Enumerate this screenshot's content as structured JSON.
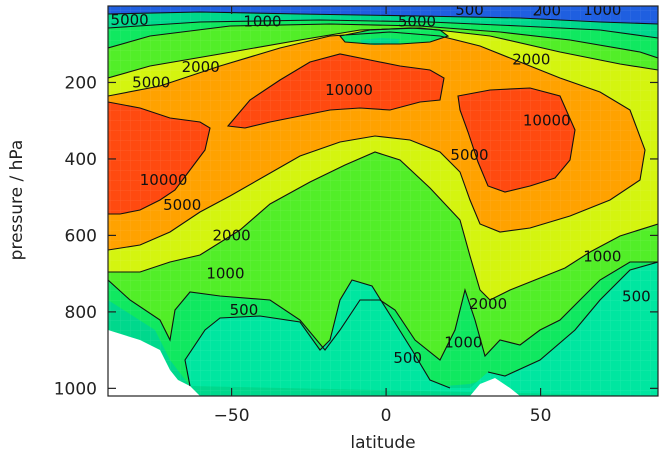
{
  "chart_data": {
    "type": "heatmap",
    "subtype": "filled-contour",
    "xlabel": "latitude",
    "ylabel": "pressure / hPa",
    "xlim": [
      -90,
      88
    ],
    "ylim": [
      1020,
      0
    ],
    "y_axis_inverted": true,
    "xticks": [
      -50,
      0,
      50
    ],
    "xtick_labels": [
      "−50",
      "0",
      "50"
    ],
    "yticks": [
      200,
      400,
      600,
      800,
      1000
    ],
    "ytick_labels": [
      "200",
      "400",
      "600",
      "800",
      "1000"
    ],
    "contour_levels": [
      200,
      500,
      1000,
      2000,
      5000,
      10000
    ],
    "level_colors": {
      "below_200": "#1f5fe0",
      "200_500": "#00d88c",
      "500_1000": "#10e860",
      "1000_2000": "#52ee28",
      "2000_5000": "#d4f410",
      "5000_10000": "#ffa200",
      "above_10000": "#ff4a10"
    },
    "contour_labels": [
      {
        "text": "5000",
        "lat": -83,
        "p": 36
      },
      {
        "text": "1000",
        "lat": -40,
        "p": 40
      },
      {
        "text": "5000",
        "lat": 10,
        "p": 40
      },
      {
        "text": "500",
        "lat": 27,
        "p": 10
      },
      {
        "text": "200",
        "lat": 52,
        "p": 12
      },
      {
        "text": "1000",
        "lat": 70,
        "p": 10
      },
      {
        "text": "2000",
        "lat": -60,
        "p": 160
      },
      {
        "text": "5000",
        "lat": -76,
        "p": 200
      },
      {
        "text": "2000",
        "lat": 47,
        "p": 140
      },
      {
        "text": "10000",
        "lat": -12,
        "p": 220
      },
      {
        "text": "10000",
        "lat": 52,
        "p": 300
      },
      {
        "text": "10000",
        "lat": -72,
        "p": 455
      },
      {
        "text": "5000",
        "lat": 27,
        "p": 390
      },
      {
        "text": "5000",
        "lat": -66,
        "p": 520
      },
      {
        "text": "2000",
        "lat": -50,
        "p": 600
      },
      {
        "text": "1000",
        "lat": -52,
        "p": 700
      },
      {
        "text": "1000",
        "lat": 70,
        "p": 655
      },
      {
        "text": "2000",
        "lat": 33,
        "p": 780
      },
      {
        "text": "500",
        "lat": -46,
        "p": 795
      },
      {
        "text": "500",
        "lat": 81,
        "p": 760
      },
      {
        "text": "1000",
        "lat": 25,
        "p": 880
      },
      {
        "text": "500",
        "lat": 7,
        "p": 920
      }
    ]
  }
}
